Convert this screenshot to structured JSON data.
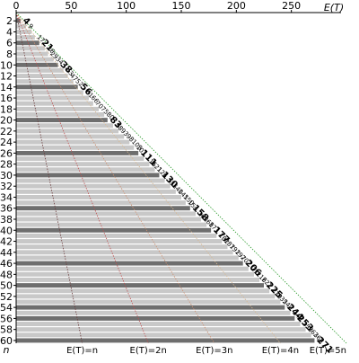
{
  "chart_data": {
    "type": "bar",
    "orientation": "horizontal",
    "xlabel": "E(T)",
    "ylabel": "n",
    "xlim": [
      0,
      300
    ],
    "ylim": [
      1,
      60
    ],
    "x_ticks": [
      0,
      50,
      100,
      150,
      200,
      250
    ],
    "y_ticks": [
      2,
      4,
      6,
      8,
      10,
      12,
      14,
      16,
      18,
      20,
      22,
      24,
      26,
      28,
      30,
      32,
      34,
      36,
      38,
      40,
      42,
      44,
      46,
      48,
      50,
      52,
      54,
      56,
      58,
      60
    ],
    "grid": false,
    "legend": "none",
    "reference_lines": [
      {
        "label": "E(T)=n",
        "factor": 1,
        "color": "#6b3a3a"
      },
      {
        "label": "E(T)=2n",
        "factor": 2,
        "color": "#c05050"
      },
      {
        "label": "E(T)=3n",
        "factor": 3,
        "color": "#d09070"
      },
      {
        "label": "E(T)=4n",
        "factor": 4,
        "color": "#d8b890"
      },
      {
        "label": "E(T)=5n",
        "factor": 5,
        "color": "#2a9a2a"
      }
    ],
    "highlight_n": [
      2,
      6,
      10,
      14,
      20,
      26,
      30,
      36,
      40,
      46,
      50,
      54,
      56,
      60
    ],
    "bar_values": [
      {
        "n": 1,
        "value": 0
      },
      {
        "n": 2,
        "value": 4
      },
      {
        "n": 3,
        "value": 9
      },
      {
        "n": 4,
        "value": 14
      },
      {
        "n": 5,
        "value": 17
      },
      {
        "n": 6,
        "value": 21
      },
      {
        "n": 7,
        "value": 26
      },
      {
        "n": 8,
        "value": 29
      },
      {
        "n": 9,
        "value": 34
      },
      {
        "n": 10,
        "value": 38
      },
      {
        "n": 11,
        "value": 43
      },
      {
        "n": 12,
        "value": 47
      },
      {
        "n": 13,
        "value": 52
      },
      {
        "n": 14,
        "value": 56
      },
      {
        "n": 15,
        "value": 61
      },
      {
        "n": 16,
        "value": 66
      },
      {
        "n": 17,
        "value": 70
      },
      {
        "n": 18,
        "value": 75
      },
      {
        "n": 19,
        "value": 80
      },
      {
        "n": 20,
        "value": 83
      },
      {
        "n": 21,
        "value": 88
      },
      {
        "n": 22,
        "value": 93
      },
      {
        "n": 23,
        "value": 98
      },
      {
        "n": 24,
        "value": 103
      },
      {
        "n": 25,
        "value": 107
      },
      {
        "n": 26,
        "value": 111
      },
      {
        "n": 27,
        "value": 116
      },
      {
        "n": 28,
        "value": 121
      },
      {
        "n": 29,
        "value": 126
      },
      {
        "n": 30,
        "value": 130
      },
      {
        "n": 31,
        "value": 135
      },
      {
        "n": 32,
        "value": 140
      },
      {
        "n": 33,
        "value": 145
      },
      {
        "n": 34,
        "value": 150
      },
      {
        "n": 35,
        "value": 154
      },
      {
        "n": 36,
        "value": 158
      },
      {
        "n": 37,
        "value": 163
      },
      {
        "n": 38,
        "value": 168
      },
      {
        "n": 39,
        "value": 173
      },
      {
        "n": 40,
        "value": 177
      },
      {
        "n": 41,
        "value": 182
      },
      {
        "n": 42,
        "value": 187
      },
      {
        "n": 43,
        "value": 192
      },
      {
        "n": 44,
        "value": 197
      },
      {
        "n": 45,
        "value": 202
      },
      {
        "n": 46,
        "value": 206
      },
      {
        "n": 47,
        "value": 211
      },
      {
        "n": 48,
        "value": 216
      },
      {
        "n": 49,
        "value": 221
      },
      {
        "n": 50,
        "value": 225
      },
      {
        "n": 51,
        "value": 230
      },
      {
        "n": 52,
        "value": 235
      },
      {
        "n": 53,
        "value": 240
      },
      {
        "n": 54,
        "value": 244
      },
      {
        "n": 55,
        "value": 249
      },
      {
        "n": 56,
        "value": 253
      },
      {
        "n": 57,
        "value": 258
      },
      {
        "n": 58,
        "value": 263
      },
      {
        "n": 59,
        "value": 268
      },
      {
        "n": 60,
        "value": 271
      }
    ],
    "point_labels": [
      {
        "n": 2,
        "text": "4",
        "bold": true
      },
      {
        "n": 3,
        "text": "9",
        "bold": false
      },
      {
        "n": 5,
        "text": "17",
        "bold": false
      },
      {
        "n": 6,
        "text": "21",
        "bold": true
      },
      {
        "n": 7,
        "text": "26",
        "bold": false
      },
      {
        "n": 8,
        "text": "29",
        "bold": false
      },
      {
        "n": 9,
        "text": "34",
        "bold": false
      },
      {
        "n": 10,
        "text": "38",
        "bold": true
      },
      {
        "n": 11,
        "text": "43",
        "bold": false
      },
      {
        "n": 12,
        "text": "47",
        "bold": false
      },
      {
        "n": 13,
        "text": "52",
        "bold": false
      },
      {
        "n": 14,
        "text": "56",
        "bold": true
      },
      {
        "n": 15,
        "text": "61",
        "bold": false
      },
      {
        "n": 16,
        "text": "66",
        "bold": false
      },
      {
        "n": 17,
        "text": "70",
        "bold": false
      },
      {
        "n": 18,
        "text": "75",
        "bold": false
      },
      {
        "n": 19,
        "text": "80",
        "bold": false
      },
      {
        "n": 20,
        "text": "83",
        "bold": true
      },
      {
        "n": 21,
        "text": "88",
        "bold": false
      },
      {
        "n": 22,
        "text": "93",
        "bold": false
      },
      {
        "n": 23,
        "text": "98",
        "bold": false
      },
      {
        "n": 24,
        "text": "103",
        "bold": false
      },
      {
        "n": 25,
        "text": "107",
        "bold": false
      },
      {
        "n": 26,
        "text": "111",
        "bold": true
      },
      {
        "n": 27,
        "text": "116",
        "bold": false
      },
      {
        "n": 28,
        "text": "121",
        "bold": false
      },
      {
        "n": 29,
        "text": "126",
        "bold": false
      },
      {
        "n": 30,
        "text": "130",
        "bold": true
      },
      {
        "n": 31,
        "text": "135",
        "bold": false
      },
      {
        "n": 32,
        "text": "140",
        "bold": false
      },
      {
        "n": 33,
        "text": "145",
        "bold": false
      },
      {
        "n": 34,
        "text": "150",
        "bold": false
      },
      {
        "n": 35,
        "text": "154",
        "bold": false
      },
      {
        "n": 36,
        "text": "158",
        "bold": true
      },
      {
        "n": 37,
        "text": "163",
        "bold": false
      },
      {
        "n": 38,
        "text": "168",
        "bold": false
      },
      {
        "n": 39,
        "text": "173",
        "bold": false
      },
      {
        "n": 40,
        "text": "177",
        "bold": true
      },
      {
        "n": 41,
        "text": "182",
        "bold": false
      },
      {
        "n": 42,
        "text": "187",
        "bold": false
      },
      {
        "n": 43,
        "text": "192",
        "bold": false
      },
      {
        "n": 44,
        "text": "197",
        "bold": false
      },
      {
        "n": 45,
        "text": "202",
        "bold": false
      },
      {
        "n": 46,
        "text": "206",
        "bold": true
      },
      {
        "n": 47,
        "text": "211",
        "bold": false
      },
      {
        "n": 48,
        "text": "216",
        "bold": false
      },
      {
        "n": 49,
        "text": "221",
        "bold": false
      },
      {
        "n": 50,
        "text": "225",
        "bold": true
      },
      {
        "n": 51,
        "text": "230",
        "bold": false
      },
      {
        "n": 52,
        "text": "235",
        "bold": false
      },
      {
        "n": 53,
        "text": "240",
        "bold": false
      },
      {
        "n": 54,
        "text": "244",
        "bold": true
      },
      {
        "n": 55,
        "text": "249",
        "bold": false
      },
      {
        "n": 56,
        "text": "253",
        "bold": true
      },
      {
        "n": 57,
        "text": "258",
        "bold": false
      },
      {
        "n": 58,
        "text": "263",
        "bold": false
      },
      {
        "n": 59,
        "text": "268",
        "bold": false
      },
      {
        "n": 60,
        "text": "271",
        "bold": true
      }
    ],
    "colors": {
      "bar_normal": "#c8c8c8",
      "bar_highlight": "#6e6e6e",
      "axis": "#000000"
    }
  }
}
